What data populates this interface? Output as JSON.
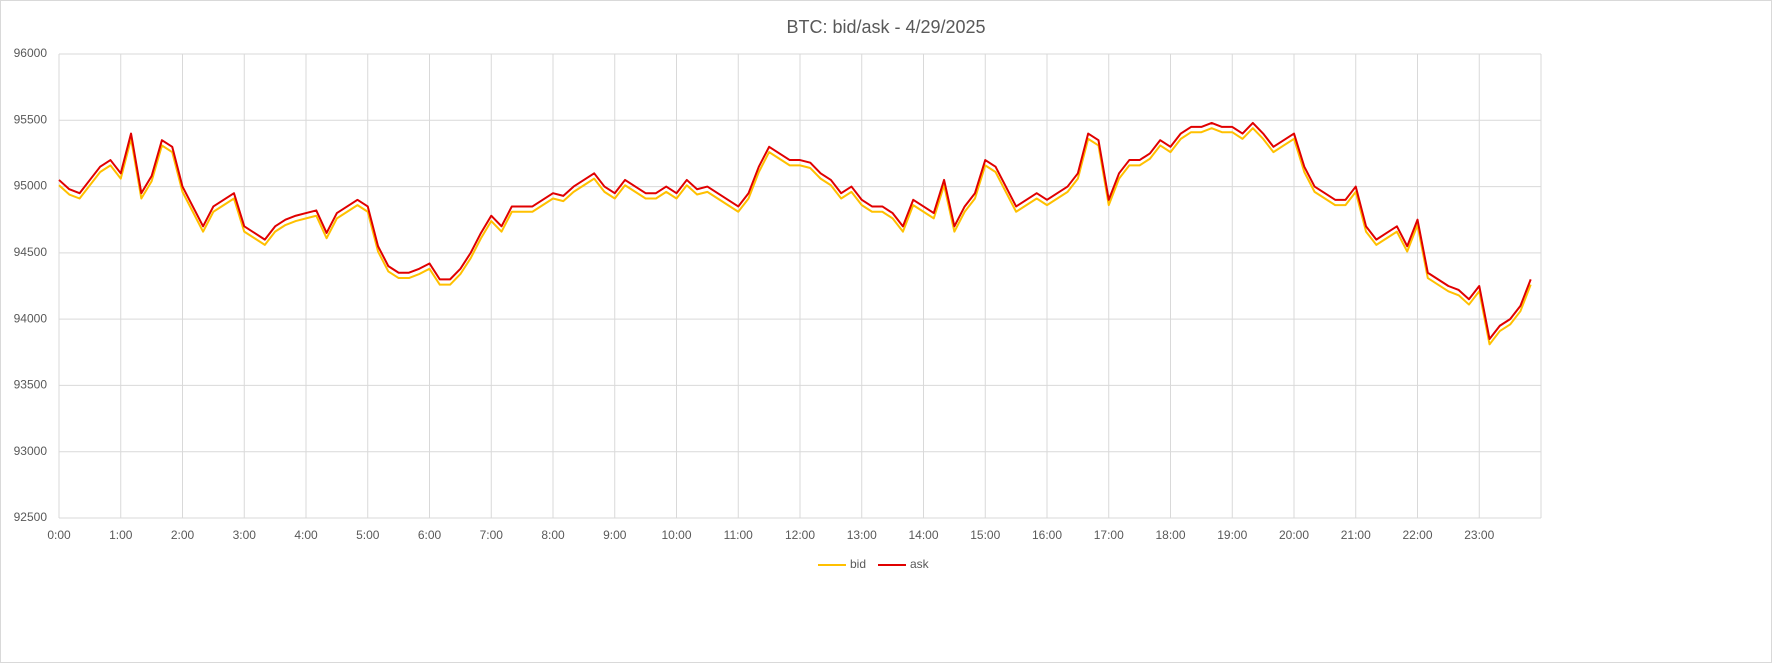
{
  "chart_data": {
    "type": "line",
    "title": "BTC: bid/ask - 4/29/2025",
    "categories": [
      "0:00",
      null,
      null,
      null,
      null,
      null,
      "1:00",
      null,
      null,
      null,
      null,
      null,
      "2:00",
      null,
      null,
      null,
      null,
      null,
      "3:00",
      null,
      null,
      null,
      null,
      null,
      "4:00",
      null,
      null,
      null,
      null,
      null,
      "5:00",
      null,
      null,
      null,
      null,
      null,
      "6:00",
      null,
      null,
      null,
      null,
      null,
      "7:00",
      null,
      null,
      null,
      null,
      null,
      "8:00",
      null,
      null,
      null,
      null,
      null,
      "9:00",
      null,
      null,
      null,
      null,
      null,
      "10:00",
      null,
      null,
      null,
      null,
      null,
      "11:00",
      null,
      null,
      null,
      null,
      null,
      "12:00",
      null,
      null,
      null,
      null,
      null,
      "13:00",
      null,
      null,
      null,
      null,
      null,
      "14:00",
      null,
      null,
      null,
      null,
      null,
      "15:00",
      null,
      null,
      null,
      null,
      null,
      "16:00",
      null,
      null,
      null,
      null,
      null,
      "17:00",
      null,
      null,
      null,
      null,
      null,
      "18:00",
      null,
      null,
      null,
      null,
      null,
      "19:00",
      null,
      null,
      null,
      null,
      null,
      "20:00",
      null,
      null,
      null,
      null,
      null,
      "21:00",
      null,
      null,
      null,
      null,
      null,
      "22:00",
      null,
      null,
      null,
      null,
      null,
      "23:00",
      null,
      null,
      null,
      null,
      null
    ],
    "series": [
      {
        "name": "bid",
        "color": "#ffc000",
        "values": [
          95010,
          94940,
          94910,
          95010,
          95110,
          95160,
          95060,
          95360,
          94910,
          95040,
          95310,
          95260,
          94960,
          94810,
          94660,
          94810,
          94860,
          94910,
          94660,
          94610,
          94560,
          94660,
          94710,
          94740,
          94760,
          94780,
          94610,
          94760,
          94810,
          94860,
          94810,
          94510,
          94360,
          94310,
          94310,
          94340,
          94380,
          94260,
          94260,
          94340,
          94460,
          94610,
          94740,
          94660,
          94810,
          94810,
          94810,
          94860,
          94910,
          94890,
          94960,
          95010,
          95060,
          94960,
          94910,
          95010,
          94960,
          94910,
          94910,
          94960,
          94910,
          95010,
          94940,
          94960,
          94910,
          94860,
          94810,
          94910,
          95110,
          95260,
          95210,
          95160,
          95160,
          95140,
          95060,
          95010,
          94910,
          94960,
          94860,
          94810,
          94810,
          94760,
          94660,
          94860,
          94810,
          94760,
          95010,
          94660,
          94810,
          94910,
          95160,
          95110,
          94960,
          94810,
          94860,
          94910,
          94860,
          94910,
          94960,
          95060,
          95360,
          95310,
          94860,
          95060,
          95160,
          95160,
          95210,
          95310,
          95260,
          95360,
          95410,
          95410,
          95440,
          95410,
          95410,
          95360,
          95440,
          95360,
          95260,
          95310,
          95360,
          95110,
          94960,
          94910,
          94860,
          94860,
          94960,
          94660,
          94560,
          94610,
          94660,
          94510,
          94710,
          94310,
          94260,
          94210,
          94180,
          94110,
          94210,
          93810,
          93910,
          93960,
          94060,
          94260
        ]
      },
      {
        "name": "ask",
        "color": "#e00000",
        "values": [
          95050,
          94980,
          94950,
          95050,
          95150,
          95200,
          95100,
          95400,
          94950,
          95080,
          95350,
          95300,
          95000,
          94850,
          94700,
          94850,
          94900,
          94950,
          94700,
          94650,
          94600,
          94700,
          94750,
          94780,
          94800,
          94820,
          94650,
          94800,
          94850,
          94900,
          94850,
          94550,
          94400,
          94350,
          94350,
          94380,
          94420,
          94300,
          94300,
          94380,
          94500,
          94650,
          94780,
          94700,
          94850,
          94850,
          94850,
          94900,
          94950,
          94930,
          95000,
          95050,
          95100,
          95000,
          94950,
          95050,
          95000,
          94950,
          94950,
          95000,
          94950,
          95050,
          94980,
          95000,
          94950,
          94900,
          94850,
          94950,
          95150,
          95300,
          95250,
          95200,
          95200,
          95180,
          95100,
          95050,
          94950,
          95000,
          94900,
          94850,
          94850,
          94800,
          94700,
          94900,
          94850,
          94800,
          95050,
          94700,
          94850,
          94950,
          95200,
          95150,
          95000,
          94850,
          94900,
          94950,
          94900,
          94950,
          95000,
          95100,
          95400,
          95350,
          94900,
          95100,
          95200,
          95200,
          95250,
          95350,
          95300,
          95400,
          95450,
          95450,
          95480,
          95450,
          95450,
          95400,
          95480,
          95400,
          95300,
          95350,
          95400,
          95150,
          95000,
          94950,
          94900,
          94900,
          95000,
          94700,
          94600,
          94650,
          94700,
          94550,
          94750,
          94350,
          94300,
          94250,
          94220,
          94150,
          94250,
          93850,
          93950,
          94000,
          94100,
          94300
        ]
      }
    ],
    "ylim": [
      92500,
      96000
    ],
    "yticks": [
      92500,
      93000,
      93500,
      94000,
      94500,
      95000,
      95500,
      96000
    ],
    "grid": true,
    "legend": "bottom"
  }
}
